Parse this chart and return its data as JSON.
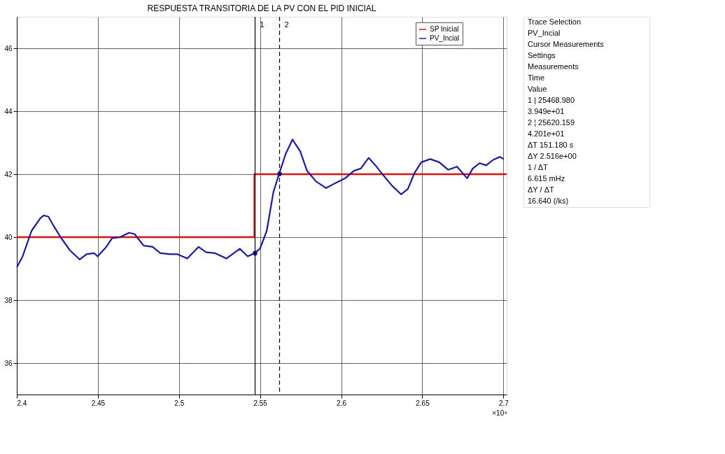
{
  "chart_data": {
    "type": "line",
    "title": "RESPUESTA TRANSITORIA DE LA PV CON EL PID INICIAL",
    "xlabel": "×10⁴",
    "xlim": [
      2.4,
      2.702
    ],
    "ylim": [
      35,
      47
    ],
    "xticks": [
      2.4,
      2.45,
      2.5,
      2.55,
      2.6,
      2.65,
      2.7
    ],
    "yticks": [
      36,
      38,
      40,
      42,
      44,
      46
    ],
    "grid": true,
    "legend": "top right",
    "series": [
      {
        "name": "SP Inicial",
        "type": "step",
        "color": "#e01010",
        "x": [
          2.4,
          2.5465,
          2.702
        ],
        "values": [
          40,
          42,
          42
        ]
      },
      {
        "name": "PV_Incial",
        "color": "#1a1aa0",
        "x": [
          2.4001,
          2.4036,
          2.4091,
          2.4146,
          2.4167,
          2.4195,
          2.4229,
          2.427,
          2.4326,
          2.4388,
          2.443,
          2.4478,
          2.4498,
          2.4547,
          2.4588,
          2.4637,
          2.4692,
          2.4726,
          2.4782,
          2.4837,
          2.4885,
          2.4947,
          2.4989,
          2.5051,
          2.512,
          2.5168,
          2.5223,
          2.5292,
          2.5375,
          2.5424,
          2.5465,
          2.5499,
          2.5541,
          2.5582,
          2.5617,
          2.5658,
          2.57,
          2.5748,
          2.5789,
          2.5845,
          2.5907,
          2.5969,
          2.6024,
          2.6079,
          2.6121,
          2.6169,
          2.6211,
          2.6259,
          2.6314,
          2.6369,
          2.6411,
          2.6452,
          2.6494,
          2.6549,
          2.6604,
          2.6659,
          2.6714,
          2.6776,
          2.6811,
          2.6853,
          2.6894,
          2.6935,
          2.6977,
          2.7002
        ],
        "values": [
          39.05,
          39.39,
          40.2,
          40.61,
          40.69,
          40.65,
          40.34,
          40.0,
          39.59,
          39.29,
          39.46,
          39.49,
          39.39,
          39.66,
          39.97,
          40.0,
          40.14,
          40.1,
          39.73,
          39.69,
          39.49,
          39.46,
          39.46,
          39.32,
          39.69,
          39.52,
          39.49,
          39.32,
          39.63,
          39.39,
          39.49,
          39.63,
          40.2,
          41.43,
          42.01,
          42.65,
          43.1,
          42.72,
          42.11,
          41.77,
          41.56,
          41.73,
          41.87,
          42.11,
          42.18,
          42.52,
          42.28,
          41.97,
          41.63,
          41.36,
          41.53,
          42.04,
          42.38,
          42.48,
          42.38,
          42.14,
          42.24,
          41.87,
          42.18,
          42.35,
          42.28,
          42.45,
          42.55,
          42.48
        ]
      },
      {
        "type": "scatter",
        "color": "#1a1aa0",
        "x": [
          2.5469,
          2.562
        ],
        "values": [
          39.49,
          42.01
        ]
      }
    ],
    "ref_lines": [
      {
        "axis": "x",
        "value": 2.5469,
        "color": "#000000",
        "line_style": "solid"
      },
      {
        "axis": "x",
        "value": 2.562,
        "color": "#000000",
        "line_style": "dashed"
      }
    ],
    "annotations": [
      {
        "text": "1",
        "x": 2.5469,
        "y": 47
      },
      {
        "text": "2",
        "x": 2.562,
        "y": 47
      },
      "Trace Selection",
      "PV_Incial",
      "Cursor Measurements",
      "Settings",
      "Measurements",
      "Time",
      "Value",
      "1 | 25468.980",
      "3.949e+01",
      "2 ¦ 25620.159",
      "4.201e+01",
      "ΔT 151.180 s",
      "ΔY 2.516e+00",
      "1 / ΔT",
      "6.615 mHz",
      "ΔY / ΔT",
      "16.640 (/ks)"
    ]
  }
}
